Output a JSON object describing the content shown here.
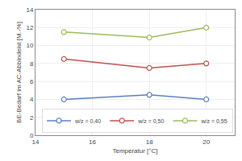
{
  "chart_data": {
    "type": "line",
    "x": [
      15,
      18,
      20
    ],
    "series": [
      {
        "name": "w/z = 0,40",
        "values": [
          4.0,
          4.5,
          4.0
        ],
        "color": "#5b7fc4",
        "marker": "circle"
      },
      {
        "name": "w/z = 0,50",
        "values": [
          8.5,
          7.5,
          8.0
        ],
        "color": "#c0504d",
        "marker": "circle"
      },
      {
        "name": "w/z = 0,55",
        "values": [
          11.5,
          10.9,
          12.0
        ],
        "color": "#9bbb59",
        "marker": "circle"
      }
    ],
    "x_label": "Temperatur [°C]",
    "y_label": "BE-Bedarf im AC-Abbindeist [M.-%]",
    "xlim": [
      14,
      21
    ],
    "ylim": [
      0,
      14
    ],
    "xticks": [
      14,
      16,
      18,
      20
    ],
    "yticks": [
      0,
      2,
      4,
      6,
      8,
      10,
      12,
      14
    ],
    "grid": true,
    "legend": "lower right"
  }
}
